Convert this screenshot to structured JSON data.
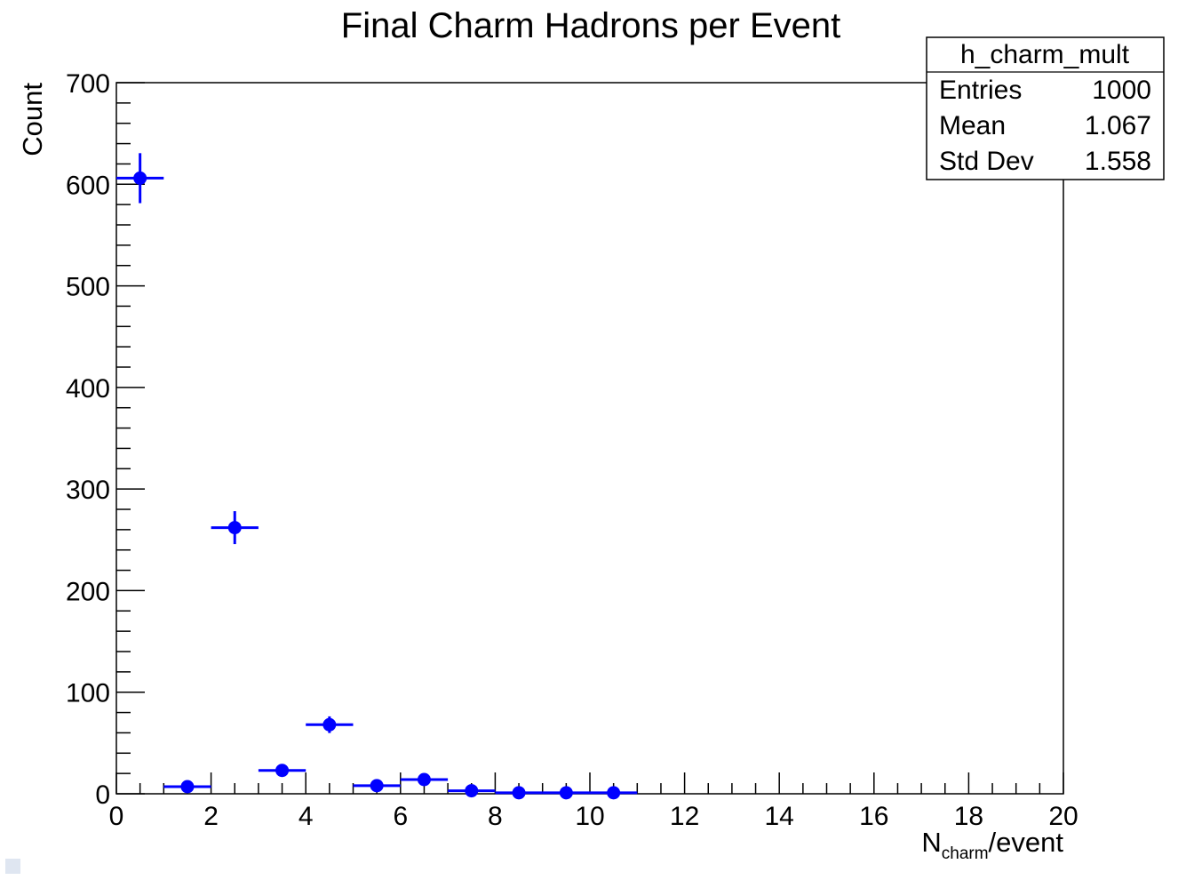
{
  "chart_data": {
    "type": "scatter",
    "title": "Final Charm Hadrons per Event",
    "xlabel_main": "N",
    "xlabel_sub": "charm",
    "xlabel_suffix": "/event",
    "ylabel": "Count",
    "xlim": [
      0,
      20
    ],
    "ylim": [
      0,
      700
    ],
    "x_ticks": [
      0,
      2,
      4,
      6,
      8,
      10,
      12,
      14,
      16,
      18,
      20
    ],
    "y_ticks": [
      0,
      100,
      200,
      300,
      400,
      500,
      600,
      700
    ],
    "x_tick_labels": [
      "0",
      "2",
      "4",
      "6",
      "8",
      "10",
      "12",
      "14",
      "16",
      "18",
      "20"
    ],
    "y_tick_labels": [
      "0",
      "100",
      "200",
      "300",
      "400",
      "500",
      "600",
      "700"
    ],
    "color": "#0000ff",
    "points": [
      {
        "x": 0.5,
        "y": 606,
        "xerr": 0.5,
        "yerr": 24.6
      },
      {
        "x": 1.5,
        "y": 7,
        "xerr": 0.5,
        "yerr": 2.6
      },
      {
        "x": 2.5,
        "y": 262,
        "xerr": 0.5,
        "yerr": 16.2
      },
      {
        "x": 3.5,
        "y": 23,
        "xerr": 0.5,
        "yerr": 4.8
      },
      {
        "x": 4.5,
        "y": 68,
        "xerr": 0.5,
        "yerr": 8.2
      },
      {
        "x": 5.5,
        "y": 8,
        "xerr": 0.5,
        "yerr": 2.8
      },
      {
        "x": 6.5,
        "y": 14,
        "xerr": 0.5,
        "yerr": 3.7
      },
      {
        "x": 7.5,
        "y": 3,
        "xerr": 0.5,
        "yerr": 1.7
      },
      {
        "x": 8.5,
        "y": 1,
        "xerr": 0.5,
        "yerr": 1
      },
      {
        "x": 9.5,
        "y": 1,
        "xerr": 0.5,
        "yerr": 1
      },
      {
        "x": 10.5,
        "y": 1,
        "xerr": 0.5,
        "yerr": 1
      }
    ]
  },
  "stats_box": {
    "name": "h_charm_mult",
    "rows": [
      {
        "label": "Entries",
        "value": "1000"
      },
      {
        "label": "Mean",
        "value": "1.067"
      },
      {
        "label": "Std Dev",
        "value": "1.558"
      }
    ]
  }
}
